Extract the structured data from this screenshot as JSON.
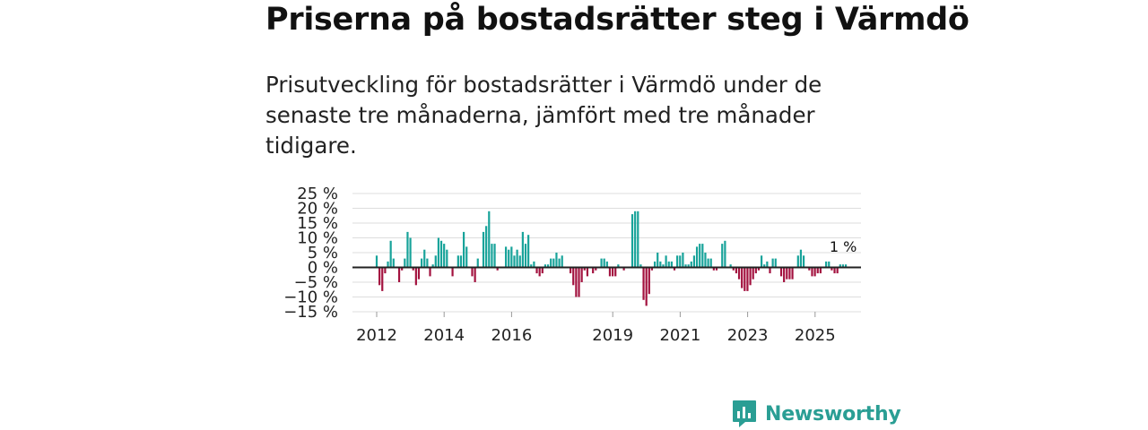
{
  "header": {
    "title": "Priserna på bostadsrätter steg i Värmdö",
    "subtitle": "Prisutveckling för bostadsrätter i Värmdö under de senaste tre månaderna, jämfört med tre månader tidigare."
  },
  "brand": {
    "name": "Newsworthy"
  },
  "colors": {
    "positive": "#18a39a",
    "negative": "#a3123f",
    "grid": "#dddddd",
    "zero": "#222222"
  },
  "chart_data": {
    "type": "bar",
    "title": "Priserna på bostadsrätter steg i Värmdö",
    "xlabel": "",
    "ylabel": "",
    "ylim": [
      -15,
      25
    ],
    "yticks": [
      25,
      20,
      15,
      10,
      5,
      0,
      -5,
      -10,
      -15
    ],
    "ytick_labels": [
      "25 %",
      "20 %",
      "15 %",
      "10 %",
      "5 %",
      "0 %",
      "−5 %",
      "−10 %",
      "−15 %"
    ],
    "x_start": 2012.0,
    "x_step": 0.0833,
    "xtick_labels": [
      "2012",
      "2014",
      "2016",
      "2019",
      "2021",
      "2023",
      "2025"
    ],
    "xtick_years": [
      2012,
      2014,
      2016,
      2019,
      2021,
      2023,
      2025
    ],
    "last_label": "1 %",
    "values": [
      4,
      -6,
      -8,
      -2,
      2,
      9,
      3,
      0,
      -5,
      -1,
      3,
      12,
      10,
      -1,
      -6,
      -4,
      3,
      6,
      3,
      -3,
      1,
      4,
      10,
      9,
      8,
      6,
      0,
      -3,
      0,
      4,
      4,
      12,
      7,
      0,
      -3,
      -5,
      3,
      0,
      12,
      14,
      19,
      8,
      8,
      -1,
      0,
      0,
      7,
      6,
      7,
      4,
      6,
      4,
      12,
      8,
      11,
      1,
      2,
      -2,
      -3,
      -2,
      1,
      1,
      3,
      3,
      5,
      3,
      4,
      0,
      0,
      -2,
      -6,
      -10,
      -10,
      -5,
      -1,
      -3,
      0,
      -2,
      -1,
      0,
      3,
      3,
      2,
      -3,
      -3,
      -3,
      1,
      0,
      -1,
      0,
      0,
      18,
      19,
      19,
      1,
      -11,
      -13,
      -9,
      -1,
      2,
      5,
      2,
      1,
      4,
      2,
      2,
      -1,
      4,
      4,
      5,
      1,
      1,
      2,
      4,
      7,
      8,
      8,
      5,
      3,
      3,
      -1,
      -1,
      0,
      8,
      9,
      0,
      1,
      -1,
      -2,
      -4,
      -7,
      -8,
      -8,
      -6,
      -4,
      -2,
      -1,
      4,
      1,
      2,
      -2,
      3,
      3,
      0,
      -3,
      -5,
      -4,
      -4,
      -4,
      0,
      4,
      6,
      4,
      0,
      -1,
      -3,
      -3,
      -2,
      -2,
      0,
      2,
      2,
      -1,
      -2,
      -2,
      1,
      1,
      1
    ]
  }
}
